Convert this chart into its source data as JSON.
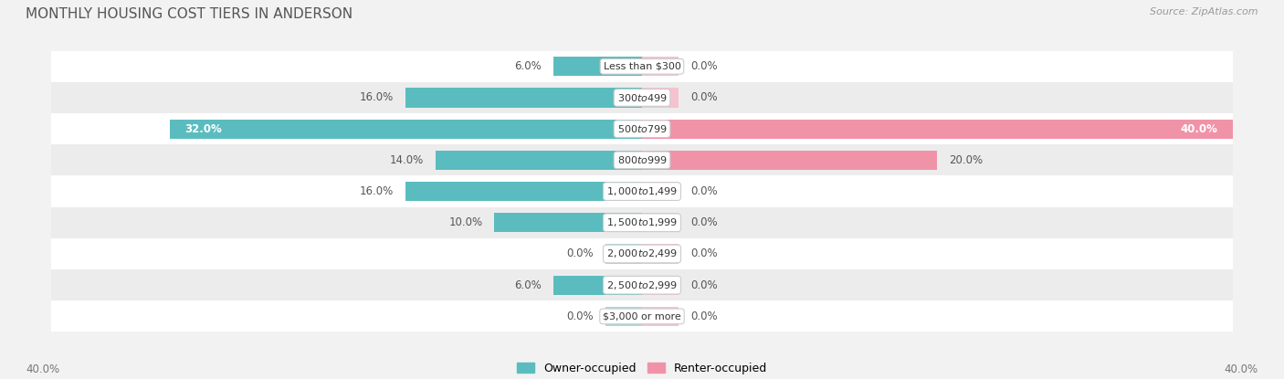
{
  "title": "MONTHLY HOUSING COST TIERS IN ANDERSON",
  "source": "Source: ZipAtlas.com",
  "categories": [
    "Less than $300",
    "$300 to $499",
    "$500 to $799",
    "$800 to $999",
    "$1,000 to $1,499",
    "$1,500 to $1,999",
    "$2,000 to $2,499",
    "$2,500 to $2,999",
    "$3,000 or more"
  ],
  "owner_values": [
    6.0,
    16.0,
    32.0,
    14.0,
    16.0,
    10.0,
    0.0,
    6.0,
    0.0
  ],
  "renter_values": [
    0.0,
    0.0,
    40.0,
    20.0,
    0.0,
    0.0,
    0.0,
    0.0,
    0.0
  ],
  "owner_color": "#5bbcbf",
  "renter_color": "#f093a8",
  "owner_stub_color": "#a8d8da",
  "renter_stub_color": "#f5c2d0",
  "max_value": 40.0,
  "stub_value": 2.5,
  "bar_height": 0.62,
  "bg_color": "#f2f2f2",
  "row_colors": [
    "#ffffff",
    "#ececec"
  ],
  "label_fontsize": 8.5,
  "title_fontsize": 11,
  "legend_fontsize": 9,
  "value_fontsize": 8.5,
  "cat_fontsize": 8.0
}
